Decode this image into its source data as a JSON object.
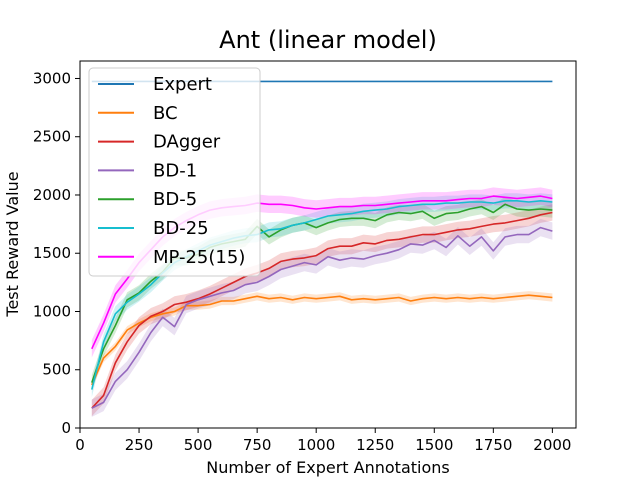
{
  "chart_data": {
    "type": "line",
    "title": "Ant (linear model)",
    "xlabel": "Number of Expert Annotations",
    "ylabel": "Test Reward Value",
    "xlim": [
      0,
      2100
    ],
    "ylim": [
      0,
      3150
    ],
    "xticks": [
      0,
      250,
      500,
      750,
      1000,
      1250,
      1500,
      1750,
      2000
    ],
    "yticks": [
      0,
      500,
      1000,
      1500,
      2000,
      2500,
      3000
    ],
    "grid": false,
    "legend_position": "top-left",
    "x": [
      50,
      100,
      150,
      200,
      250,
      300,
      350,
      400,
      450,
      500,
      550,
      600,
      650,
      700,
      750,
      800,
      850,
      900,
      950,
      1000,
      1050,
      1100,
      1150,
      1200,
      1250,
      1300,
      1350,
      1400,
      1450,
      1500,
      1550,
      1600,
      1650,
      1700,
      1750,
      1800,
      1850,
      1900,
      1950,
      2000
    ],
    "series": [
      {
        "name": "Expert",
        "color": "#1f77b4",
        "values": [
          2975,
          2975,
          2975,
          2975,
          2975,
          2975,
          2975,
          2975,
          2975,
          2975,
          2975,
          2975,
          2975,
          2975,
          2975,
          2975,
          2975,
          2975,
          2975,
          2975,
          2975,
          2975,
          2975,
          2975,
          2975,
          2975,
          2975,
          2975,
          2975,
          2975,
          2975,
          2975,
          2975,
          2975,
          2975,
          2975,
          2975,
          2975,
          2975,
          2975
        ],
        "band": 0
      },
      {
        "name": "BC",
        "color": "#ff7f0e",
        "values": [
          370,
          600,
          700,
          840,
          900,
          950,
          980,
          1000,
          1050,
          1050,
          1060,
          1090,
          1090,
          1110,
          1130,
          1110,
          1120,
          1100,
          1120,
          1110,
          1120,
          1130,
          1100,
          1110,
          1100,
          1110,
          1120,
          1090,
          1110,
          1120,
          1110,
          1120,
          1110,
          1120,
          1110,
          1120,
          1130,
          1140,
          1130,
          1120
        ],
        "band": 35
      },
      {
        "name": "DAgger",
        "color": "#d62728",
        "values": [
          170,
          280,
          560,
          740,
          880,
          960,
          1000,
          1060,
          1080,
          1110,
          1150,
          1200,
          1250,
          1300,
          1330,
          1370,
          1430,
          1450,
          1460,
          1480,
          1540,
          1560,
          1560,
          1590,
          1580,
          1610,
          1620,
          1640,
          1660,
          1660,
          1680,
          1700,
          1710,
          1730,
          1750,
          1760,
          1780,
          1800,
          1830,
          1850
        ],
        "band": 70
      },
      {
        "name": "BD-1",
        "color": "#9467bd",
        "values": [
          170,
          220,
          400,
          500,
          650,
          820,
          950,
          870,
          1060,
          1100,
          1130,
          1160,
          1180,
          1230,
          1250,
          1300,
          1360,
          1390,
          1420,
          1400,
          1470,
          1440,
          1460,
          1450,
          1480,
          1500,
          1530,
          1580,
          1570,
          1610,
          1550,
          1650,
          1560,
          1640,
          1520,
          1640,
          1660,
          1660,
          1720,
          1690
        ],
        "band": 75
      },
      {
        "name": "BD-5",
        "color": "#2ca02c",
        "values": [
          390,
          680,
          880,
          1100,
          1160,
          1260,
          1340,
          1460,
          1460,
          1490,
          1550,
          1580,
          1600,
          1620,
          1730,
          1640,
          1700,
          1740,
          1760,
          1720,
          1760,
          1790,
          1800,
          1800,
          1780,
          1830,
          1850,
          1840,
          1860,
          1800,
          1840,
          1850,
          1880,
          1900,
          1850,
          1920,
          1880,
          1870,
          1880,
          1870
        ],
        "band": 65
      },
      {
        "name": "BD-25",
        "color": "#17becf",
        "values": [
          330,
          740,
          980,
          1080,
          1150,
          1230,
          1330,
          1420,
          1470,
          1520,
          1570,
          1600,
          1630,
          1650,
          1660,
          1700,
          1710,
          1740,
          1760,
          1790,
          1820,
          1830,
          1840,
          1860,
          1870,
          1880,
          1900,
          1910,
          1920,
          1920,
          1930,
          1930,
          1940,
          1940,
          1930,
          1950,
          1950,
          1940,
          1950,
          1940
        ],
        "band": 65
      },
      {
        "name": "MP-25(15)",
        "color": "#ff00ff",
        "values": [
          680,
          900,
          1150,
          1280,
          1420,
          1530,
          1640,
          1720,
          1780,
          1830,
          1870,
          1890,
          1900,
          1910,
          1930,
          1920,
          1920,
          1910,
          1890,
          1880,
          1890,
          1900,
          1900,
          1910,
          1910,
          1920,
          1930,
          1940,
          1950,
          1950,
          1950,
          1960,
          1970,
          1970,
          1990,
          1980,
          1970,
          1980,
          1990,
          1970
        ],
        "band": 75
      }
    ]
  }
}
